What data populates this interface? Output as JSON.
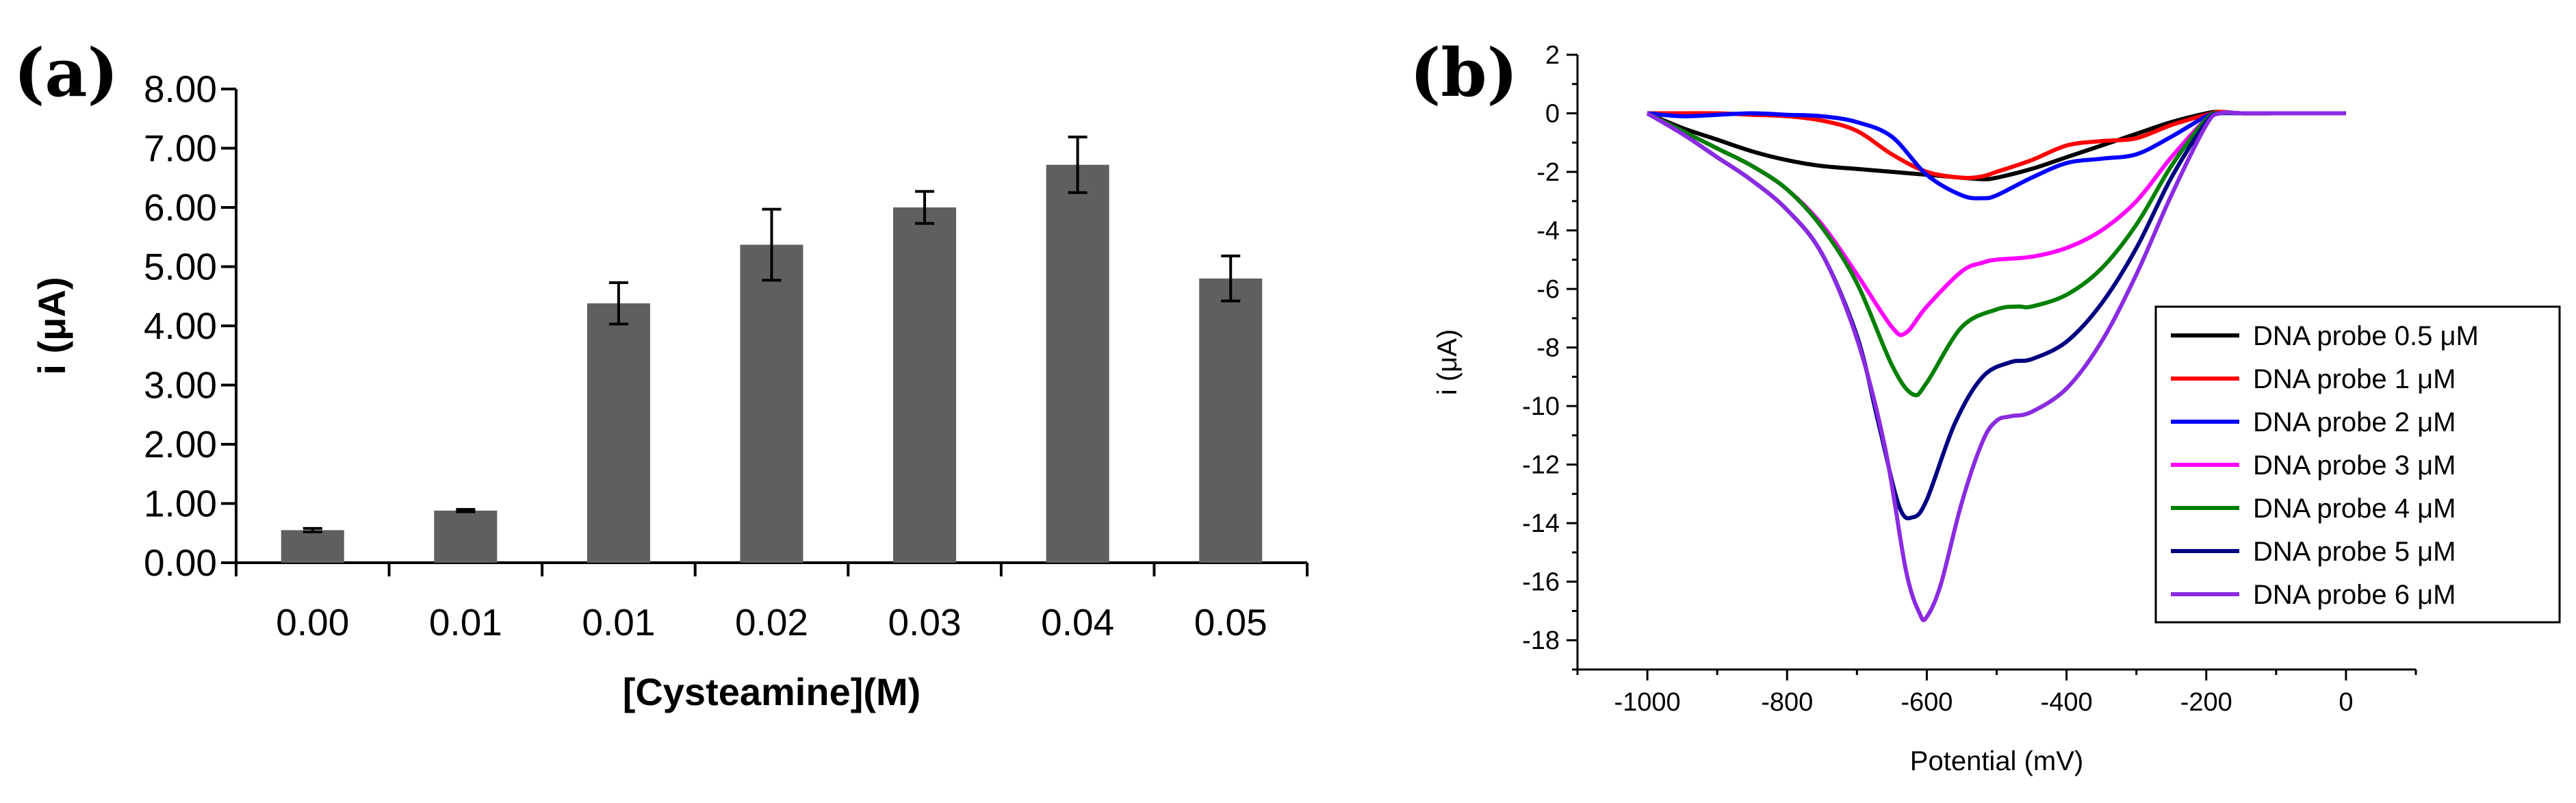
{
  "figure": {
    "label_a": "(a)",
    "label_b": "(b)"
  },
  "chart_data": [
    {
      "type": "bar",
      "title": "",
      "categories": [
        "0.00",
        "0.01",
        "0.01",
        "0.02",
        "0.03",
        "0.04",
        "0.05"
      ],
      "values": [
        0.55,
        0.88,
        4.38,
        5.37,
        6.0,
        6.72,
        4.8
      ],
      "errors": [
        0.03,
        0.02,
        0.35,
        0.6,
        0.27,
        0.47,
        0.38
      ],
      "xlabel": "[Cysteamine](M)",
      "ylabel": "i (μA)",
      "ylim": [
        0,
        8
      ],
      "yticks": [
        "0.00",
        "1.00",
        "2.00",
        "3.00",
        "4.00",
        "5.00",
        "6.00",
        "7.00",
        "8.00"
      ],
      "bar_color": "#5f5f5f"
    },
    {
      "type": "line",
      "title": "",
      "xlabel": "Potential (mV)",
      "ylabel": "i (μA)",
      "xlim": [
        -1100,
        100
      ],
      "ylim": [
        -19,
        2
      ],
      "xticks": [
        -1000,
        -800,
        -600,
        -400,
        -200,
        0
      ],
      "yticks": [
        2,
        0,
        -2,
        -4,
        -6,
        -8,
        -10,
        -12,
        -14,
        -16,
        -18
      ],
      "legend_position": "right",
      "series": [
        {
          "name": "DNA probe 0.5 μM",
          "color": "#000000",
          "x": [
            -1000,
            -950,
            -900,
            -850,
            -800,
            -750,
            -700,
            -650,
            -600,
            -550,
            -520,
            -500,
            -450,
            -400,
            -350,
            -300,
            -250,
            -200,
            -180,
            -150,
            -100,
            -50,
            0
          ],
          "y": [
            0,
            -0.5,
            -0.9,
            -1.3,
            -1.6,
            -1.8,
            -1.9,
            -2.0,
            -2.1,
            -2.2,
            -2.25,
            -2.2,
            -1.9,
            -1.5,
            -1.1,
            -0.7,
            -0.3,
            0,
            0.05,
            0,
            0,
            0,
            0
          ]
        },
        {
          "name": "DNA probe 1 μM",
          "color": "#ff0000",
          "x": [
            -1000,
            -950,
            -900,
            -850,
            -800,
            -750,
            -700,
            -650,
            -600,
            -550,
            -520,
            -500,
            -450,
            -400,
            -350,
            -300,
            -250,
            -200,
            -180,
            -150,
            -100,
            -50,
            0
          ],
          "y": [
            0,
            0,
            0,
            -0.05,
            -0.1,
            -0.25,
            -0.6,
            -1.4,
            -2.0,
            -2.2,
            -2.15,
            -2.0,
            -1.6,
            -1.1,
            -0.95,
            -0.85,
            -0.4,
            -0.05,
            0.05,
            0,
            0,
            0,
            0
          ]
        },
        {
          "name": "DNA probe 2 μM",
          "color": "#0000ff",
          "x": [
            -1000,
            -950,
            -900,
            -850,
            -800,
            -750,
            -700,
            -650,
            -600,
            -550,
            -520,
            -500,
            -450,
            -400,
            -350,
            -300,
            -250,
            -200,
            -180,
            -150,
            -100,
            -50,
            0
          ],
          "y": [
            0,
            -0.1,
            -0.05,
            0,
            -0.05,
            -0.1,
            -0.3,
            -0.8,
            -2.1,
            -2.8,
            -2.9,
            -2.8,
            -2.2,
            -1.7,
            -1.55,
            -1.4,
            -0.8,
            -0.1,
            0,
            0,
            0,
            0,
            0
          ]
        },
        {
          "name": "DNA probe 3 μM",
          "color": "#ff00ff",
          "x": [
            -1000,
            -950,
            -900,
            -850,
            -800,
            -750,
            -700,
            -650,
            -630,
            -600,
            -550,
            -520,
            -500,
            -450,
            -400,
            -350,
            -300,
            -250,
            -200,
            -180,
            -150,
            -100,
            -50,
            0
          ],
          "y": [
            0,
            -0.6,
            -1.2,
            -1.8,
            -2.6,
            -3.8,
            -5.5,
            -7.3,
            -7.5,
            -6.6,
            -5.4,
            -5.1,
            -5.0,
            -4.9,
            -4.6,
            -4.0,
            -3.0,
            -1.5,
            -0.2,
            0,
            0,
            0,
            0,
            0
          ]
        },
        {
          "name": "DNA probe 4 μM",
          "color": "#008000",
          "x": [
            -1000,
            -950,
            -900,
            -850,
            -800,
            -750,
            -700,
            -650,
            -620,
            -600,
            -550,
            -500,
            -470,
            -450,
            -400,
            -350,
            -300,
            -250,
            -200,
            -180,
            -150,
            -100,
            -50,
            0
          ],
          "y": [
            0,
            -0.6,
            -1.2,
            -1.8,
            -2.6,
            -3.9,
            -5.8,
            -8.6,
            -9.6,
            -9.2,
            -7.3,
            -6.7,
            -6.6,
            -6.6,
            -6.2,
            -5.3,
            -3.8,
            -1.8,
            -0.2,
            0,
            0,
            0,
            0,
            0
          ]
        },
        {
          "name": "DNA probe 5 μM",
          "color": "#000080",
          "x": [
            -1000,
            -950,
            -900,
            -850,
            -800,
            -750,
            -700,
            -670,
            -640,
            -620,
            -600,
            -560,
            -520,
            -480,
            -450,
            -400,
            -350,
            -300,
            -250,
            -200,
            -180,
            -150,
            -100,
            -50,
            0
          ],
          "y": [
            0,
            -0.7,
            -1.5,
            -2.3,
            -3.3,
            -4.8,
            -7.6,
            -10.5,
            -13.4,
            -13.8,
            -13.2,
            -10.6,
            -9.0,
            -8.5,
            -8.4,
            -7.8,
            -6.5,
            -4.6,
            -2.2,
            -0.3,
            0,
            0,
            0,
            0,
            0
          ]
        },
        {
          "name": "DNA probe 6 μM",
          "color": "#8a2be2",
          "x": [
            -1000,
            -950,
            -900,
            -850,
            -800,
            -750,
            -700,
            -660,
            -630,
            -610,
            -600,
            -580,
            -550,
            -520,
            -500,
            -480,
            -450,
            -400,
            -350,
            -300,
            -250,
            -200,
            -180,
            -150,
            -100,
            -50,
            0
          ],
          "y": [
            0,
            -0.7,
            -1.5,
            -2.3,
            -3.3,
            -4.8,
            -7.7,
            -11.4,
            -15.6,
            -17.1,
            -17.2,
            -16.1,
            -13.3,
            -11.2,
            -10.5,
            -10.35,
            -10.2,
            -9.4,
            -7.8,
            -5.5,
            -2.8,
            -0.4,
            0,
            0,
            0,
            0,
            0
          ]
        }
      ]
    }
  ]
}
